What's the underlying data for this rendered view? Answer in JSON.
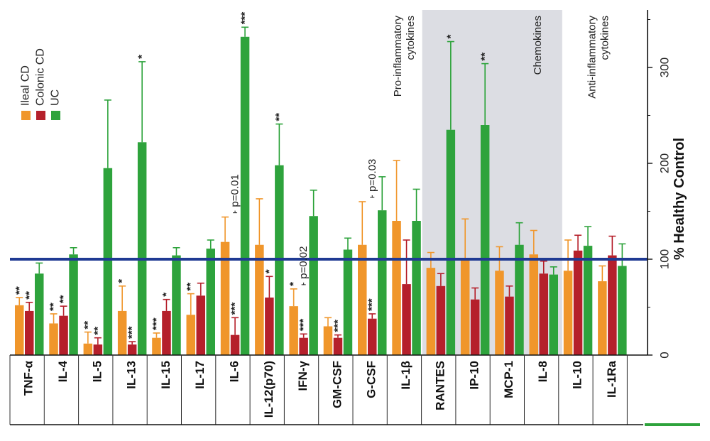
{
  "chart_data": {
    "type": "bar",
    "title": "",
    "ylabel": "% Healthy Control",
    "ylim": [
      0,
      360
    ],
    "yticks": [
      0,
      100,
      200,
      300
    ],
    "reference_line": 100,
    "reference_color": "#1f3a93",
    "categories": [
      "TNF-α",
      "IL-4",
      "IL-5",
      "IL-13",
      "IL-15",
      "IL-17",
      "IL-6",
      "IL-12(p70)",
      "IFN-γ",
      "GM-CSF",
      "G-CSF",
      "IL-1β",
      "RANTES",
      "IP-10",
      "MCP-1",
      "IL-8",
      "IL-10",
      "IL-1Ra"
    ],
    "series": [
      {
        "name": "Ileal CD",
        "color": "#f0962b",
        "values": [
          52,
          33,
          12,
          46,
          18,
          42,
          118,
          115,
          51,
          30,
          115,
          140,
          91,
          100,
          88,
          105,
          88,
          77
        ],
        "errors": [
          8,
          10,
          12,
          26,
          5,
          22,
          26,
          48,
          18,
          9,
          45,
          63,
          16,
          42,
          25,
          25,
          32,
          16
        ]
      },
      {
        "name": "Colonic CD",
        "color": "#b5202b",
        "values": [
          46,
          41,
          11,
          11,
          46,
          62,
          21,
          60,
          18,
          18,
          38,
          74,
          72,
          58,
          61,
          85,
          109,
          104
        ],
        "errors": [
          9,
          10,
          7,
          3,
          12,
          13,
          18,
          22,
          4,
          3,
          5,
          46,
          13,
          12,
          11,
          13,
          16,
          20
        ]
      },
      {
        "name": "UC",
        "color": "#2ea33c",
        "values": [
          85,
          105,
          195,
          222,
          104,
          111,
          332,
          198,
          145,
          110,
          151,
          140,
          235,
          240,
          115,
          84,
          114,
          93
        ],
        "errors": [
          11,
          7,
          71,
          84,
          8,
          9,
          10,
          43,
          27,
          12,
          35,
          33,
          92,
          64,
          23,
          8,
          20,
          23
        ]
      }
    ],
    "significance": [
      {
        "category": "TNF-α",
        "series": "Ileal CD",
        "label": "**"
      },
      {
        "category": "TNF-α",
        "series": "Colonic CD",
        "label": "**"
      },
      {
        "category": "IL-4",
        "series": "Ileal CD",
        "label": "**"
      },
      {
        "category": "IL-4",
        "series": "Colonic CD",
        "label": "**"
      },
      {
        "category": "IL-5",
        "series": "Ileal CD",
        "label": "**"
      },
      {
        "category": "IL-5",
        "series": "Colonic CD",
        "label": "**"
      },
      {
        "category": "IL-13",
        "series": "Ileal CD",
        "label": "*"
      },
      {
        "category": "IL-13",
        "series": "Colonic CD",
        "label": "***"
      },
      {
        "category": "IL-13",
        "series": "UC",
        "label": "*"
      },
      {
        "category": "IL-15",
        "series": "Ileal CD",
        "label": "***"
      },
      {
        "category": "IL-15",
        "series": "Colonic CD",
        "label": "*"
      },
      {
        "category": "IL-17",
        "series": "Ileal CD",
        "label": "**"
      },
      {
        "category": "IL-6",
        "series": "Colonic CD",
        "label": "***"
      },
      {
        "category": "IL-6",
        "series": "UC",
        "label": "***"
      },
      {
        "category": "IL-12(p70)",
        "series": "Colonic CD",
        "label": "*"
      },
      {
        "category": "IL-12(p70)",
        "series": "UC",
        "label": "**"
      },
      {
        "category": "IFN-γ",
        "series": "Ileal CD",
        "label": "*"
      },
      {
        "category": "IFN-γ",
        "series": "Colonic CD",
        "label": "***"
      },
      {
        "category": "GM-CSF",
        "series": "Colonic CD",
        "label": "***"
      },
      {
        "category": "G-CSF",
        "series": "Colonic CD",
        "label": "***"
      },
      {
        "category": "RANTES",
        "series": "UC",
        "label": "*"
      },
      {
        "category": "IP-10",
        "series": "UC",
        "label": "**"
      }
    ],
    "pvalues": [
      {
        "category": "IL-6",
        "label": "p=0.01"
      },
      {
        "category": "IFN-γ",
        "label": "p=0.02"
      },
      {
        "category": "G-CSF",
        "label": "p=0.03"
      }
    ],
    "groups": [
      {
        "label_lines": [
          "Pro-inflammatory",
          "cytokines"
        ],
        "shaded": false
      },
      {
        "label_lines": [
          "Chemokines"
        ],
        "shaded": true
      },
      {
        "label_lines": [
          "Anti-inflammatory",
          "cytokines"
        ],
        "shaded": false
      }
    ],
    "shade_color": "#dcdde3"
  }
}
